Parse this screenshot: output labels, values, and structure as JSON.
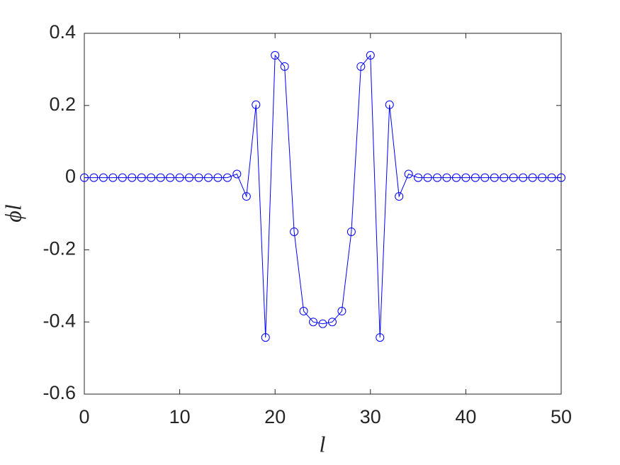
{
  "chart_data": {
    "type": "line",
    "xlabel": "l",
    "ylabel": "ϕl",
    "x": [
      0,
      1,
      2,
      3,
      4,
      5,
      6,
      7,
      8,
      9,
      10,
      11,
      12,
      13,
      14,
      15,
      16,
      17,
      18,
      19,
      20,
      21,
      22,
      23,
      24,
      25,
      26,
      27,
      28,
      29,
      30,
      31,
      32,
      33,
      34,
      35,
      36,
      37,
      38,
      39,
      40,
      41,
      42,
      43,
      44,
      45,
      46,
      47,
      48,
      49,
      50
    ],
    "values": [
      0,
      0,
      0,
      0,
      0,
      0,
      0,
      0,
      0,
      0,
      0,
      0,
      0,
      0,
      0,
      0,
      0.01,
      -0.052,
      0.202,
      -0.443,
      0.339,
      0.308,
      -0.15,
      -0.37,
      -0.4,
      -0.405,
      -0.4,
      -0.37,
      -0.15,
      0.308,
      0.339,
      -0.443,
      0.202,
      -0.052,
      0.01,
      0,
      0,
      0,
      0,
      0,
      0,
      0,
      0,
      0,
      0,
      0,
      0,
      0,
      0,
      0,
      0
    ],
    "color": "#0000ff",
    "marker": "circle",
    "xlim": [
      0,
      50
    ],
    "xticks": [
      0,
      10,
      20,
      30,
      40,
      50
    ],
    "ylim": [
      -0.6,
      0.4
    ],
    "yticks": [
      -0.6,
      -0.4,
      -0.2,
      0,
      0.2,
      0.4
    ],
    "grid": false
  }
}
